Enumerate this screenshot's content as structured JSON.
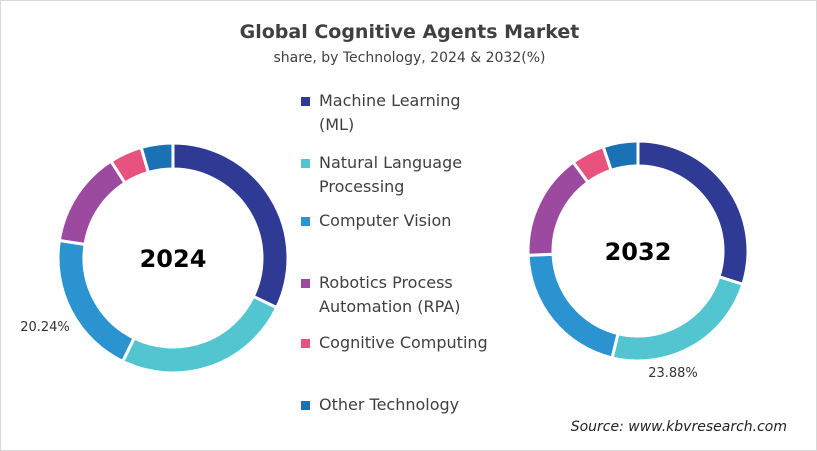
{
  "chart_data": [
    {
      "type": "pie",
      "donut": true,
      "title": "Global Cognitive Agents Market",
      "subtitle": "share, by Technology, 2024 & 2032(%)",
      "center_label": "2024",
      "categories": [
        "Machine Learning (ML)",
        "Natural Language Processing",
        "Computer Vision",
        "Robotics Process Automation (RPA)",
        "Cognitive Computing",
        "Other Technology"
      ],
      "values": [
        32.1,
        25.1,
        20.24,
        13.5,
        4.6,
        4.46
      ],
      "data_labels": [
        {
          "category": "Computer Vision",
          "text": "20.24%"
        }
      ]
    },
    {
      "type": "pie",
      "donut": true,
      "center_label": "2032",
      "categories": [
        "Machine Learning (ML)",
        "Natural Language Processing",
        "Computer Vision",
        "Robotics Process Automation (RPA)",
        "Cognitive Computing",
        "Other Technology"
      ],
      "values": [
        29.9,
        23.88,
        20.6,
        15.6,
        4.9,
        5.12
      ],
      "data_labels": [
        {
          "category": "Natural Language Processing",
          "text": "23.88%"
        }
      ]
    }
  ],
  "legend": {
    "placement": "center",
    "items": [
      {
        "lines": [
          "Machine Learning",
          "(ML)"
        ],
        "color": "#2e3a93"
      },
      {
        "lines": [
          "Natural Language",
          "Processing"
        ],
        "color": "#52c5d0"
      },
      {
        "lines": [
          "Computer Vision"
        ],
        "color": "#2a93d0"
      },
      {
        "lines": [
          "Robotics Process",
          "Automation (RPA)"
        ],
        "color": "#9b4a9f"
      },
      {
        "lines": [
          "Cognitive Computing"
        ],
        "color": "#e8527f"
      },
      {
        "lines": [
          "Other Technology"
        ],
        "color": "#1a72b4"
      }
    ]
  },
  "source": "Source: www.kbvresearch.com"
}
